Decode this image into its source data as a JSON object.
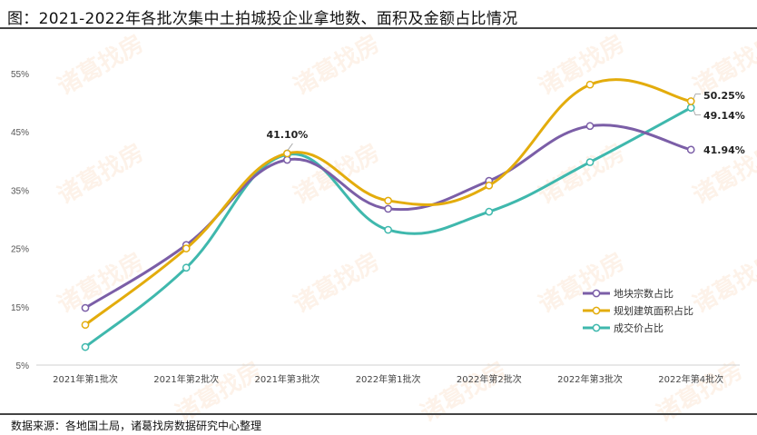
{
  "header": {
    "title": "图：2021-2022年各批次集中土拍城投企业拿地数、面积及金额占比情况"
  },
  "footer": {
    "source": "数据来源：各地国土局，诸葛找房数据研究中心整理"
  },
  "watermark": "诸葛找房",
  "chart_data": {
    "type": "line",
    "title": "2021-2022年各批次集中土拍城投企业拿地数、面积及金额占比情况",
    "xlabel": "",
    "ylabel": "",
    "categories": [
      "2021年第1批次",
      "2021年第2批次",
      "2021年第3批次",
      "2022年第1批次",
      "2022年第2批次",
      "2022年第3批次",
      "2022年第4批次"
    ],
    "y_ticks": [
      "5%",
      "15%",
      "25%",
      "35%",
      "45%",
      "55%"
    ],
    "ylim": [
      5,
      55
    ],
    "grid": false,
    "smooth": true,
    "legend_position": "lower-right",
    "series": [
      {
        "name": "地块宗数占比",
        "color": "#7b5ea7",
        "values": [
          14.8,
          25.6,
          40.2,
          31.8,
          36.6,
          46.0,
          41.94
        ]
      },
      {
        "name": "规划建筑面积占比",
        "color": "#e3ac0c",
        "values": [
          11.9,
          25.0,
          41.3,
          33.2,
          35.8,
          53.1,
          50.25
        ]
      },
      {
        "name": "成交价占比",
        "color": "#3fb8ad",
        "values": [
          8.1,
          21.7,
          41.1,
          28.2,
          31.3,
          39.8,
          49.14
        ]
      }
    ],
    "annotations": [
      {
        "series": "成交价占比",
        "category": "2021年第3批次",
        "text": "41.10%"
      },
      {
        "series": "规划建筑面积占比",
        "category": "2022年第4批次",
        "text": "50.25%"
      },
      {
        "series": "成交价占比",
        "category": "2022年第4批次",
        "text": "49.14%"
      },
      {
        "series": "地块宗数占比",
        "category": "2022年第4批次",
        "text": "41.94%"
      }
    ]
  }
}
